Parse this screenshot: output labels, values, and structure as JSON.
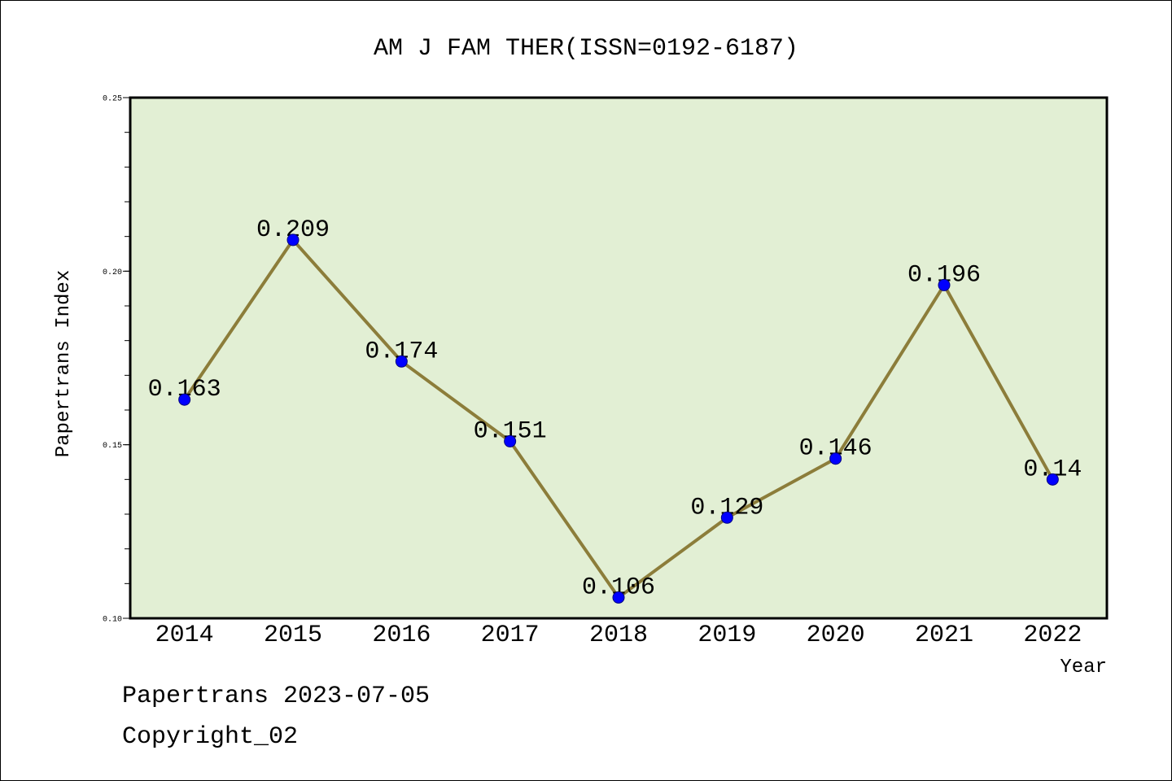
{
  "chart_data": {
    "type": "line",
    "title": "AM J FAM THER(ISSN=0192-6187)",
    "xlabel": "Year",
    "ylabel": "Papertrans Index",
    "categories": [
      "2014",
      "2015",
      "2016",
      "2017",
      "2018",
      "2019",
      "2020",
      "2021",
      "2022"
    ],
    "series": [
      {
        "values": [
          0.163,
          0.209,
          0.174,
          0.151,
          0.106,
          0.129,
          0.146,
          0.196,
          0.14
        ]
      }
    ],
    "ylim": [
      0.1,
      0.25
    ],
    "yticks": [
      "0.10",
      "0.15",
      "0.20",
      "0.25"
    ],
    "grid": false,
    "legend": "none",
    "colors": {
      "line": "#8c7d3a",
      "marker": "#0000ff",
      "marker_edge": "#000080",
      "plot_background": "#e2efd4"
    }
  },
  "footer": {
    "source": "Papertrans 2023-07-05",
    "copyright": "Copyright_02"
  }
}
